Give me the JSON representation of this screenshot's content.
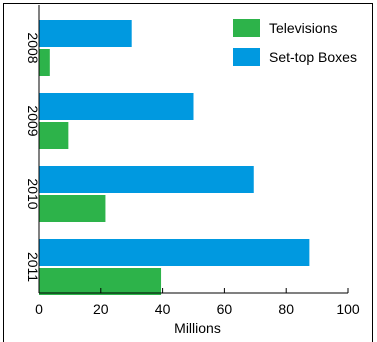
{
  "chart_data": {
    "type": "bar",
    "orientation": "horizontal",
    "categories": [
      "2008",
      "2009",
      "2010",
      "2011"
    ],
    "series": [
      {
        "name": "Televisions",
        "color": "#2db34a",
        "values": [
          3.5,
          9.5,
          21.5,
          39.5
        ]
      },
      {
        "name": "Set-top Boxes",
        "color": "#0099e0",
        "values": [
          30,
          50,
          69.5,
          87.5
        ]
      }
    ],
    "xlabel": "Millions",
    "ylabel": "",
    "xlim": [
      0,
      100
    ],
    "xticks": [
      "0",
      "20",
      "40",
      "60",
      "80",
      "100"
    ],
    "grid": false,
    "legend_position": "top-right"
  }
}
